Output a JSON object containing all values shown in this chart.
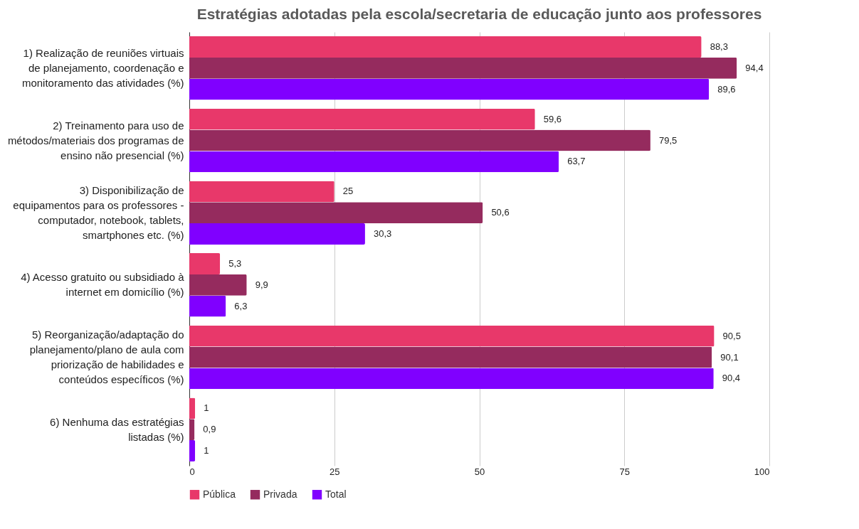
{
  "chart_data": {
    "type": "bar",
    "orientation": "horizontal",
    "title": "Estratégias adotadas pela escola/secretaria de educação junto aos professores",
    "categories": [
      "1) Realização de reuniões virtuais de planejamento, coordenação e monitoramento das atividades (%)",
      "2) Treinamento para uso de métodos/materiais dos programas de ensino não presencial (%)",
      "3) Disponibilização de equipamentos para os professores - computador, notebook, tablets, smartphones etc. (%)",
      "4) Acesso gratuito ou subsidiado à internet em domicílio (%)",
      "5) Reorganização/adaptação do planejamento/plano de aula com priorização de habilidades e conteúdos específicos (%)",
      "6) Nenhuma das estratégias listadas (%)"
    ],
    "series": [
      {
        "name": "Pública",
        "color": "#e8386a",
        "values": [
          88.3,
          59.6,
          25,
          5.3,
          90.5,
          1
        ],
        "value_labels": [
          "88,3",
          "59,6",
          "25",
          "5,3",
          "90,5",
          "1"
        ]
      },
      {
        "name": "Privada",
        "color": "#952b5e",
        "values": [
          94.4,
          79.5,
          50.6,
          9.9,
          90.1,
          0.9
        ],
        "value_labels": [
          "94,4",
          "79,5",
          "50,6",
          "9,9",
          "90,1",
          "0,9"
        ]
      },
      {
        "name": "Total",
        "color": "#8000ff",
        "values": [
          89.6,
          63.7,
          30.3,
          6.3,
          90.4,
          1
        ],
        "value_labels": [
          "89,6",
          "63,7",
          "30,3",
          "6,3",
          "90,4",
          "1"
        ]
      }
    ],
    "xlim": [
      0,
      100
    ],
    "xticks": [
      0,
      25,
      50,
      75,
      100
    ],
    "grid": "x",
    "legend": "bottom"
  }
}
